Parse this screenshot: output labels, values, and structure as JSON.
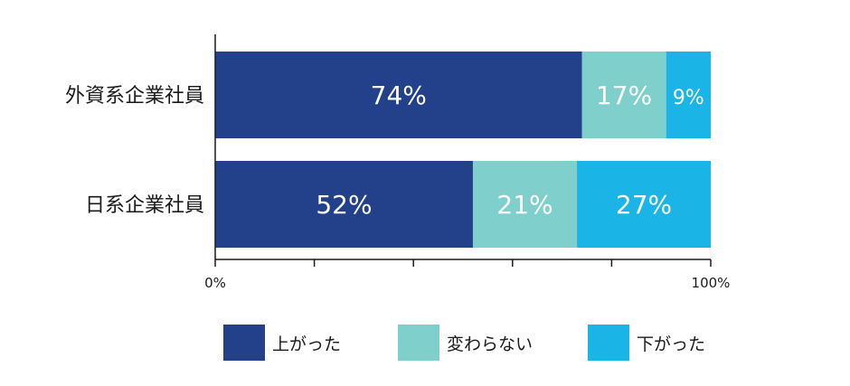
{
  "chart_data": {
    "type": "bar",
    "orientation": "horizontal",
    "stacked": true,
    "categories": [
      "外資系企業社員",
      "日系企業社員"
    ],
    "series": [
      {
        "name": "上がった",
        "values": [
          74,
          52
        ],
        "labels": [
          "74%",
          "52%"
        ],
        "color": "#22418a"
      },
      {
        "name": "変わらない",
        "values": [
          17,
          21
        ],
        "labels": [
          "17%",
          "21%"
        ],
        "color": "#7fcfcc"
      },
      {
        "name": "下がった",
        "values": [
          9,
          27
        ],
        "labels": [
          "9%",
          "27%"
        ],
        "color": "#1ab4e6"
      }
    ],
    "xlim": [
      0,
      100
    ],
    "x_ticks": [
      0,
      20,
      40,
      60,
      80,
      100
    ],
    "x_tick_labels": {
      "0": "0%",
      "100": "100%"
    },
    "grid": false,
    "legend_position": "bottom"
  }
}
